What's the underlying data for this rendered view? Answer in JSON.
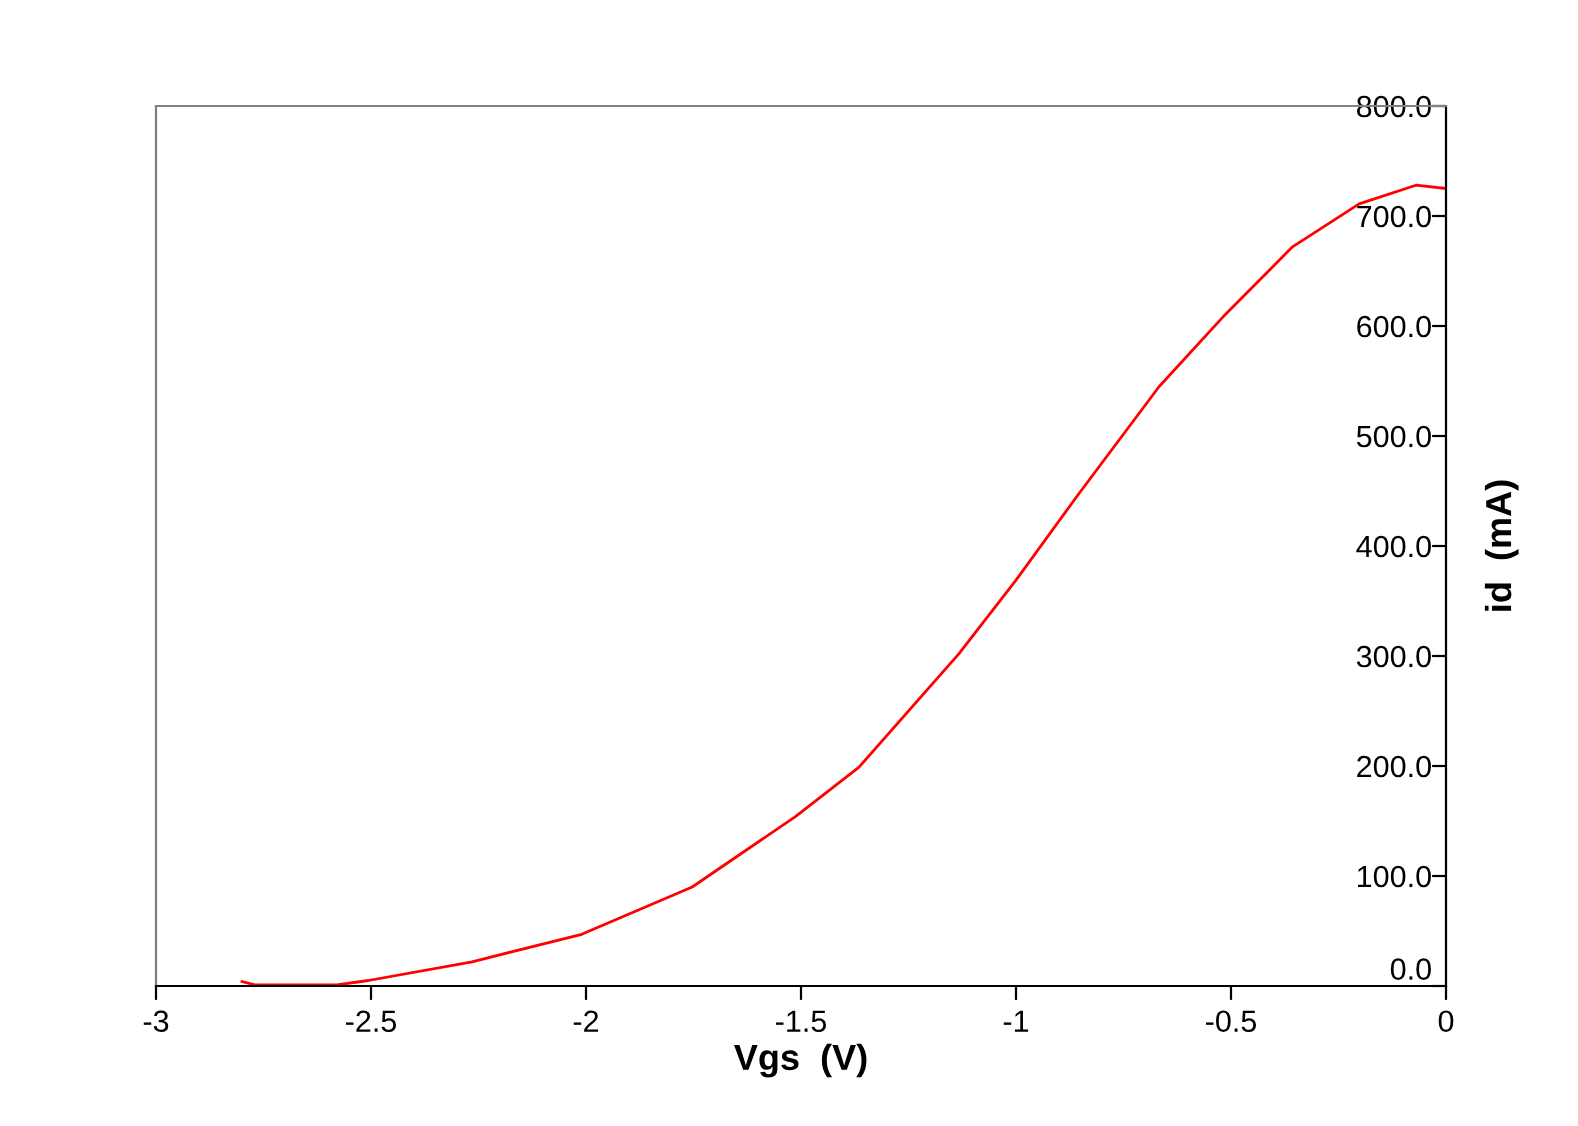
{
  "chart_data": {
    "type": "line",
    "xlabel": "Vgs  (V)",
    "ylabel": "id  (mA)",
    "x": [
      -2.8,
      -2.77,
      -2.58,
      -2.506,
      -2.265,
      -2.01,
      -1.753,
      -1.513,
      -1.365,
      -1.133,
      -1.0,
      -0.853,
      -0.667,
      -0.512,
      -0.357,
      -0.202,
      -0.07,
      0
    ],
    "series": [
      {
        "color": "#ff0000",
        "values": [
          4,
          1,
          1,
          5,
          22,
          47,
          90,
          154,
          199,
          302,
          369,
          448,
          545,
          611,
          672,
          711,
          728,
          725
        ]
      }
    ],
    "xlim": [
      -3,
      0
    ],
    "xticks": [
      -3,
      -2.5,
      -2,
      -1.5,
      -1,
      -0.5,
      0
    ],
    "ylim": [
      0,
      800
    ],
    "yticks": [
      {
        "value": 0,
        "label": "0.0"
      },
      {
        "value": 100,
        "label": "100.0"
      },
      {
        "value": 200,
        "label": "200.0"
      },
      {
        "value": 300,
        "label": "300.0"
      },
      {
        "value": 400,
        "label": "400.0"
      },
      {
        "value": 500,
        "label": "500.0"
      },
      {
        "value": 600,
        "label": "600.0"
      },
      {
        "value": 700,
        "label": "700.0"
      },
      {
        "value": 800,
        "label": "800.0"
      }
    ],
    "grid": false,
    "marker": "none",
    "line_style": "solid"
  }
}
